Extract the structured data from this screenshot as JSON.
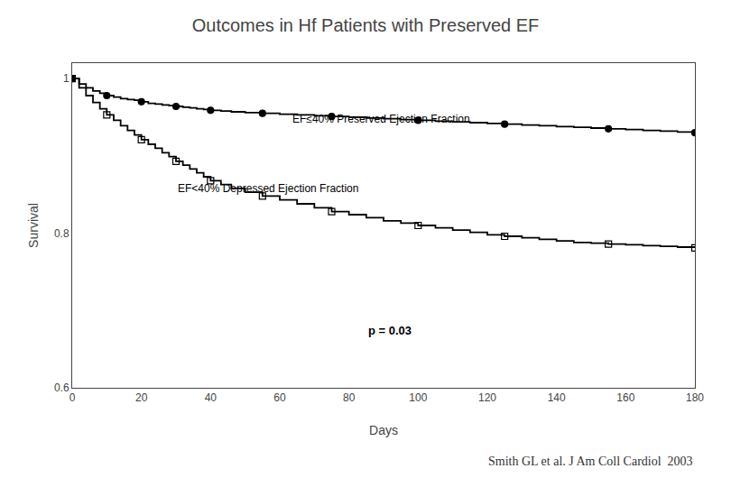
{
  "chart_data": {
    "type": "line",
    "title": "Outcomes in Hf Patients with Preserved EF",
    "xlabel": "Days",
    "ylabel": "Survival",
    "xlim": [
      0,
      180
    ],
    "ylim": [
      0.6,
      1.02
    ],
    "xticks": [
      0,
      20,
      40,
      60,
      80,
      100,
      120,
      140,
      160,
      180
    ],
    "yticks": [
      0.6,
      0.8,
      1
    ],
    "grid": false,
    "series": [
      {
        "type": "step",
        "color": "#000000",
        "x": [
          0,
          2,
          4,
          6,
          8,
          10,
          12,
          14,
          16,
          18,
          20,
          22,
          24,
          26,
          28,
          30,
          32,
          34,
          36,
          38,
          40,
          43,
          46,
          50,
          55,
          60,
          65,
          70,
          75,
          80,
          85,
          90,
          95,
          100,
          105,
          110,
          115,
          120,
          125,
          130,
          135,
          140,
          145,
          150,
          155,
          160,
          165,
          170,
          175,
          180
        ],
        "values": [
          1.0,
          0.993,
          0.988,
          0.984,
          0.981,
          0.978,
          0.976,
          0.974,
          0.973,
          0.972,
          0.97,
          0.968,
          0.967,
          0.966,
          0.965,
          0.964,
          0.963,
          0.962,
          0.961,
          0.96,
          0.959,
          0.958,
          0.957,
          0.956,
          0.955,
          0.954,
          0.953,
          0.952,
          0.951,
          0.95,
          0.949,
          0.948,
          0.947,
          0.946,
          0.945,
          0.944,
          0.943,
          0.942,
          0.941,
          0.94,
          0.939,
          0.938,
          0.937,
          0.936,
          0.935,
          0.934,
          0.933,
          0.932,
          0.931,
          0.93
        ]
      },
      {
        "type": "step",
        "color": "#000000",
        "x": [
          0,
          2,
          4,
          6,
          8,
          10,
          12,
          14,
          16,
          18,
          20,
          22,
          24,
          26,
          28,
          30,
          32,
          34,
          36,
          38,
          40,
          43,
          46,
          50,
          55,
          60,
          65,
          70,
          75,
          80,
          85,
          90,
          95,
          100,
          105,
          110,
          115,
          120,
          125,
          130,
          135,
          140,
          145,
          150,
          155,
          160,
          165,
          170,
          175,
          180
        ],
        "values": [
          1.0,
          0.988,
          0.978,
          0.969,
          0.961,
          0.953,
          0.946,
          0.939,
          0.933,
          0.927,
          0.921,
          0.915,
          0.91,
          0.904,
          0.899,
          0.893,
          0.888,
          0.883,
          0.878,
          0.873,
          0.868,
          0.863,
          0.858,
          0.853,
          0.848,
          0.843,
          0.838,
          0.833,
          0.828,
          0.824,
          0.82,
          0.816,
          0.813,
          0.81,
          0.807,
          0.804,
          0.801,
          0.798,
          0.796,
          0.794,
          0.792,
          0.79,
          0.788,
          0.787,
          0.786,
          0.785,
          0.784,
          0.783,
          0.782,
          0.781
        ]
      },
      {
        "type": "scatter",
        "color": "#000000",
        "marker": "circle",
        "x": [
          0,
          10,
          20,
          30,
          40,
          55,
          75,
          100,
          125,
          155,
          180
        ],
        "values": [
          1.0,
          0.978,
          0.97,
          0.964,
          0.959,
          0.955,
          0.951,
          0.946,
          0.941,
          0.935,
          0.93
        ]
      },
      {
        "type": "scatter",
        "color": "#000000",
        "marker": "square-open",
        "x": [
          0,
          10,
          20,
          30,
          40,
          55,
          75,
          100,
          125,
          155,
          180
        ],
        "values": [
          1.0,
          0.953,
          0.921,
          0.893,
          0.868,
          0.848,
          0.828,
          0.81,
          0.796,
          0.786,
          0.781
        ]
      }
    ],
    "annotations": [
      {
        "text": "EF≤40% Preserved Ejection Fraction",
        "x": 63,
        "y": 0.948
      },
      {
        "text": "EF<40% Depressed Ejection Fraction",
        "x": 30,
        "y": 0.858
      },
      {
        "text": "p = 0.03",
        "x": 85,
        "y": 0.674
      },
      {
        "text": "Smith GL et al. J Am Coll Cardiol  2003"
      }
    ]
  }
}
